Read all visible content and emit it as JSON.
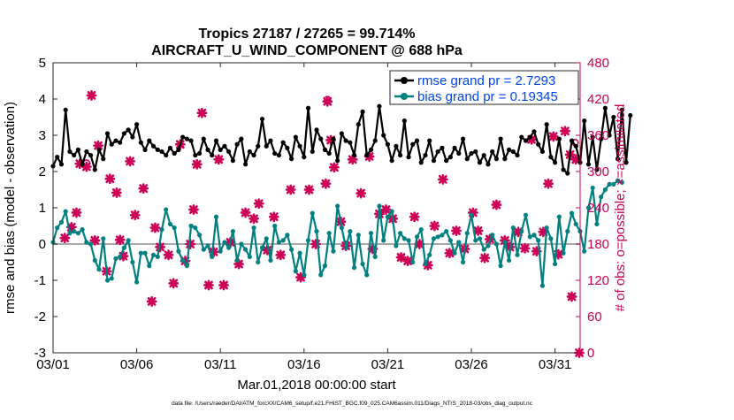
{
  "chart_data": {
    "type": "line",
    "title": "Tropics 27187 / 27265 = 99.714%",
    "subtitle": "AIRCRAFT_U_WIND_COMPONENT @ 688 hPa",
    "xlabel": "Mar.01,2018 00:00:00 start",
    "ylabel_left": "rmse and bias (model - observation)",
    "ylabel_right": "# of obs: o=possible; ×=assimilated",
    "footnote": "data file: /Users/raeder/DAI/ATM_forcXX/CAM6_setup/f.e21.FHIST_BGC.f09_025.CAM6assim.011/Diags_NTrS_2018-03/obs_diag_output.nc",
    "xlim": [
      0,
      31.5
    ],
    "ylim_left": [
      -3,
      5
    ],
    "ylim_right": [
      0,
      480
    ],
    "xtick_values": [
      0,
      5,
      10,
      15,
      20,
      25,
      30
    ],
    "xtick_labels": [
      "03/01",
      "03/06",
      "03/11",
      "03/16",
      "03/21",
      "03/26",
      "03/31"
    ],
    "ytick_left": [
      "-3",
      "-2",
      "-1",
      "0",
      "1",
      "2",
      "3",
      "4",
      "5"
    ],
    "ytick_right": [
      "0",
      "60",
      "120",
      "180",
      "240",
      "300",
      "360",
      "420",
      "480"
    ],
    "legend": {
      "position": "top-right",
      "entries": [
        "rmse grand pr = 2.7293",
        "bias grand pr = 0.19345"
      ]
    },
    "colors": {
      "rmse": "#000000",
      "bias": "#008080",
      "obs": "#cc0055",
      "right_axis": "#cc0055",
      "legend_text": "#0000ff",
      "zero_line": "#aaaaaa"
    },
    "x_step_days": 0.25,
    "series": [
      {
        "name": "rmse",
        "values": [
          2.15,
          2.4,
          2.2,
          3.7,
          2.55,
          2.45,
          2.6,
          2.2,
          2.55,
          2.45,
          2.05,
          2.6,
          2.35,
          3.05,
          2.75,
          2.85,
          2.8,
          3.05,
          3.15,
          2.95,
          3.3,
          2.8,
          2.6,
          2.85,
          2.7,
          2.6,
          2.55,
          2.45,
          2.65,
          2.5,
          2.6,
          2.95,
          2.9,
          2.85,
          2.45,
          2.5,
          2.9,
          2.6,
          2.45,
          2.85,
          2.6,
          2.7,
          2.55,
          2.3,
          2.75,
          2.9,
          2.2,
          2.55,
          2.45,
          2.7,
          3.45,
          2.7,
          2.85,
          2.5,
          2.45,
          2.8,
          2.65,
          2.35,
          2.95,
          2.7,
          2.4,
          3.75,
          2.55,
          3.15,
          2.9,
          2.6,
          2.5,
          2.9,
          2.3,
          3.05,
          2.85,
          2.8,
          2.45,
          3.3,
          3.65,
          2.45,
          2.6,
          2.85,
          3.8,
          3.0,
          2.75,
          2.3,
          2.7,
          2.45,
          3.4,
          2.4,
          2.75,
          2.85,
          2.25,
          2.45,
          2.85,
          2.3,
          2.55,
          2.65,
          2.3,
          2.4,
          2.65,
          2.5,
          2.9,
          2.35,
          2.5,
          2.55,
          2.25,
          2.45,
          2.2,
          2.55,
          2.35,
          2.9,
          2.35,
          2.6,
          2.55,
          2.45,
          2.95,
          2.85,
          2.95,
          3.1,
          2.75,
          2.55,
          3.3,
          2.4,
          2.25,
          2.9,
          2.05,
          1.95,
          2.85,
          2.7,
          2.25,
          3.4,
          2.2,
          2.95,
          2.05,
          2.9,
          3.75,
          3.0,
          3.5,
          2.35,
          3.7,
          2.25,
          3.55
        ]
      },
      {
        "name": "bias",
        "values": [
          0.05,
          0.45,
          0.6,
          0.9,
          0.3,
          0.35,
          0.3,
          0.4,
          0.05,
          0.0,
          -0.45,
          -0.7,
          0.15,
          -1.0,
          -0.95,
          -0.4,
          -0.35,
          -0.1,
          0.1,
          -0.5,
          -1.05,
          -0.25,
          -0.25,
          -0.6,
          -0.3,
          -0.35,
          0.4,
          0.95,
          0.55,
          0.45,
          -0.2,
          -0.45,
          -0.6,
          0.5,
          0.45,
          0.25,
          -0.15,
          -0.05,
          -0.35,
          0.75,
          -0.2,
          0.05,
          -0.1,
          0.35,
          -0.45,
          0.0,
          -0.15,
          -0.35,
          0.45,
          -0.5,
          -0.1,
          0.15,
          -0.45,
          0.5,
          0.05,
          0.1,
          0.25,
          -0.15,
          -0.75,
          -0.25,
          -0.85,
          0.1,
          0.85,
          0.35,
          -0.85,
          -0.6,
          0.3,
          -0.2,
          1.05,
          0.45,
          -0.1,
          0.35,
          -0.65,
          0.25,
          -0.55,
          -0.85,
          0.3,
          -0.35,
          1.05,
          0.1,
          0.75,
          0.9,
          -0.05,
          0.3,
          0.15,
          0.1,
          -0.5,
          0.2,
          0.4,
          -0.55,
          -0.3,
          0.15,
          0.2,
          0.25,
          0.35,
          0.1,
          -0.25,
          0.05,
          -0.5,
          0.3,
          0.8,
          0.1,
          0.15,
          -0.15,
          -0.05,
          0.25,
          0.0,
          -0.6,
          0.05,
          -0.45,
          0.45,
          -0.3,
          0.35,
          0.8,
          0.2,
          0.25,
          0.1,
          -1.15,
          0.45,
          0.15,
          -0.55,
          0.75,
          -0.25,
          0.35,
          0.85,
          0.55,
          0.35,
          -0.2,
          1.0,
          1.55,
          0.55,
          1.3,
          1.5,
          1.65,
          1.65,
          1.75,
          1.7
        ]
      }
    ],
    "obs_assimilated": [
      {
        "x": 0.7,
        "y": 190
      },
      {
        "x": 1.1,
        "y": 208
      },
      {
        "x": 1.4,
        "y": 232
      },
      {
        "x": 1.6,
        "y": 313
      },
      {
        "x": 2.0,
        "y": 308
      },
      {
        "x": 2.3,
        "y": 426
      },
      {
        "x": 2.5,
        "y": 186
      },
      {
        "x": 2.7,
        "y": 343
      },
      {
        "x": 3.4,
        "y": 288
      },
      {
        "x": 3.2,
        "y": 135
      },
      {
        "x": 3.8,
        "y": 265
      },
      {
        "x": 4.0,
        "y": 187
      },
      {
        "x": 4.2,
        "y": 160
      },
      {
        "x": 4.6,
        "y": 317
      },
      {
        "x": 4.9,
        "y": 228
      },
      {
        "x": 5.4,
        "y": 272
      },
      {
        "x": 5.9,
        "y": 85
      },
      {
        "x": 6.1,
        "y": 207
      },
      {
        "x": 6.4,
        "y": 175
      },
      {
        "x": 6.9,
        "y": 162
      },
      {
        "x": 7.2,
        "y": 115
      },
      {
        "x": 7.6,
        "y": 345
      },
      {
        "x": 7.9,
        "y": 152
      },
      {
        "x": 8.2,
        "y": 180
      },
      {
        "x": 8.4,
        "y": 237
      },
      {
        "x": 8.6,
        "y": 312
      },
      {
        "x": 8.9,
        "y": 397
      },
      {
        "x": 9.3,
        "y": 112
      },
      {
        "x": 9.6,
        "y": 167
      },
      {
        "x": 9.9,
        "y": 320
      },
      {
        "x": 10.2,
        "y": 112
      },
      {
        "x": 10.6,
        "y": 183
      },
      {
        "x": 11.1,
        "y": 147
      },
      {
        "x": 11.5,
        "y": 232
      },
      {
        "x": 12.0,
        "y": 222
      },
      {
        "x": 12.3,
        "y": 247
      },
      {
        "x": 12.8,
        "y": 170
      },
      {
        "x": 13.2,
        "y": 225
      },
      {
        "x": 13.6,
        "y": 162
      },
      {
        "x": 14.2,
        "y": 270
      },
      {
        "x": 14.8,
        "y": 125
      },
      {
        "x": 15.3,
        "y": 270
      },
      {
        "x": 15.7,
        "y": 180
      },
      {
        "x": 16.3,
        "y": 280
      },
      {
        "x": 16.4,
        "y": 416
      },
      {
        "x": 16.6,
        "y": 352
      },
      {
        "x": 16.8,
        "y": 307
      },
      {
        "x": 17.2,
        "y": 217
      },
      {
        "x": 17.5,
        "y": 177
      },
      {
        "x": 17.9,
        "y": 320
      },
      {
        "x": 18.4,
        "y": 264
      },
      {
        "x": 18.9,
        "y": 325
      },
      {
        "x": 19.1,
        "y": 172
      },
      {
        "x": 19.5,
        "y": 230
      },
      {
        "x": 19.9,
        "y": 237
      },
      {
        "x": 20.3,
        "y": 222
      },
      {
        "x": 20.8,
        "y": 158
      },
      {
        "x": 21.2,
        "y": 152
      },
      {
        "x": 21.6,
        "y": 225
      },
      {
        "x": 21.9,
        "y": 180
      },
      {
        "x": 22.4,
        "y": 145
      },
      {
        "x": 22.8,
        "y": 210
      },
      {
        "x": 23.3,
        "y": 287
      },
      {
        "x": 23.7,
        "y": 165
      },
      {
        "x": 24.1,
        "y": 202
      },
      {
        "x": 24.6,
        "y": 172
      },
      {
        "x": 25.1,
        "y": 232
      },
      {
        "x": 25.4,
        "y": 202
      },
      {
        "x": 25.8,
        "y": 157
      },
      {
        "x": 26.1,
        "y": 188
      },
      {
        "x": 26.5,
        "y": 245
      },
      {
        "x": 27.0,
        "y": 186
      },
      {
        "x": 27.3,
        "y": 175
      },
      {
        "x": 27.8,
        "y": 200
      },
      {
        "x": 28.2,
        "y": 173
      },
      {
        "x": 28.6,
        "y": 353
      },
      {
        "x": 28.9,
        "y": 168
      },
      {
        "x": 29.3,
        "y": 200
      },
      {
        "x": 29.6,
        "y": 280
      },
      {
        "x": 29.9,
        "y": 358
      },
      {
        "x": 30.2,
        "y": 163
      },
      {
        "x": 30.6,
        "y": 367
      },
      {
        "x": 30.9,
        "y": 328
      },
      {
        "x": 31.0,
        "y": 93
      },
      {
        "x": 31.25,
        "y": 320
      },
      {
        "x": 31.45,
        "y": 0
      }
    ],
    "obs_possible": [
      {
        "x": 2.0,
        "y": 314
      },
      {
        "x": 16.4,
        "y": 419
      },
      {
        "x": 31.2,
        "y": 348
      }
    ]
  }
}
